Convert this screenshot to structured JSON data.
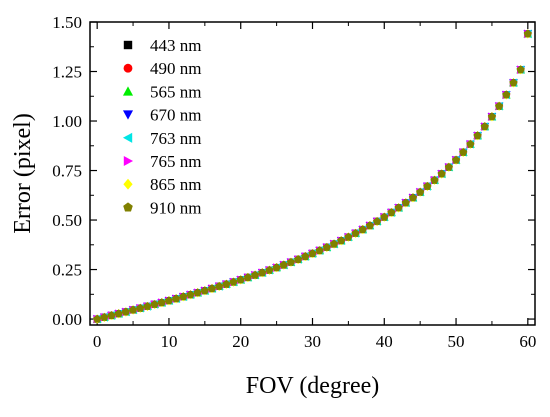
{
  "chart_data": {
    "type": "scatter",
    "title": "",
    "xlabel": "FOV (degree)",
    "ylabel": "Error (pixel)",
    "xlim": [
      -1,
      61
    ],
    "ylim": [
      -0.03,
      1.5
    ],
    "xticks": [
      0,
      10,
      20,
      30,
      40,
      50,
      60
    ],
    "yticks": [
      0.0,
      0.25,
      0.5,
      0.75,
      1.0,
      1.25,
      1.5
    ],
    "xtick_labels": [
      "0",
      "10",
      "20",
      "30",
      "40",
      "50",
      "60"
    ],
    "ytick_labels": [
      "0.00",
      "0.25",
      "0.50",
      "0.75",
      "1.00",
      "1.25",
      "1.50"
    ],
    "grid": false,
    "legend_position": "top-left",
    "x": [
      0,
      1,
      2,
      3,
      4,
      5,
      6,
      7,
      8,
      9,
      10,
      11,
      12,
      13,
      14,
      15,
      16,
      17,
      18,
      19,
      20,
      21,
      22,
      23,
      24,
      25,
      26,
      27,
      28,
      29,
      30,
      31,
      32,
      33,
      34,
      35,
      36,
      37,
      38,
      39,
      40,
      41,
      42,
      43,
      44,
      45,
      46,
      47,
      48,
      49,
      50,
      51,
      52,
      53,
      54,
      55,
      56,
      57,
      58,
      59,
      60
    ],
    "series": [
      {
        "name": "443 nm",
        "marker": "square",
        "color": "#000000",
        "values": [
          0.0,
          0.009,
          0.018,
          0.027,
          0.036,
          0.046,
          0.055,
          0.064,
          0.074,
          0.083,
          0.093,
          0.103,
          0.113,
          0.123,
          0.133,
          0.143,
          0.154,
          0.165,
          0.176,
          0.187,
          0.198,
          0.21,
          0.222,
          0.234,
          0.247,
          0.26,
          0.273,
          0.287,
          0.301,
          0.316,
          0.331,
          0.346,
          0.362,
          0.379,
          0.396,
          0.414,
          0.433,
          0.452,
          0.472,
          0.493,
          0.515,
          0.538,
          0.562,
          0.587,
          0.613,
          0.641,
          0.67,
          0.701,
          0.733,
          0.767,
          0.803,
          0.842,
          0.883,
          0.926,
          0.972,
          1.022,
          1.075,
          1.132,
          1.193,
          1.259,
          1.44
        ]
      },
      {
        "name": "490 nm",
        "marker": "circle",
        "color": "#ff0000",
        "values": [
          0.0,
          0.009,
          0.018,
          0.027,
          0.036,
          0.046,
          0.055,
          0.064,
          0.074,
          0.083,
          0.093,
          0.103,
          0.113,
          0.123,
          0.133,
          0.143,
          0.154,
          0.165,
          0.176,
          0.187,
          0.198,
          0.21,
          0.222,
          0.234,
          0.247,
          0.26,
          0.273,
          0.287,
          0.301,
          0.316,
          0.331,
          0.346,
          0.362,
          0.379,
          0.396,
          0.414,
          0.433,
          0.452,
          0.472,
          0.493,
          0.515,
          0.538,
          0.562,
          0.587,
          0.613,
          0.641,
          0.67,
          0.701,
          0.733,
          0.767,
          0.803,
          0.842,
          0.883,
          0.926,
          0.972,
          1.022,
          1.075,
          1.132,
          1.193,
          1.259,
          1.44
        ]
      },
      {
        "name": "565 nm",
        "marker": "triangle-up",
        "color": "#00ee00",
        "values": [
          0.0,
          0.009,
          0.018,
          0.027,
          0.036,
          0.046,
          0.055,
          0.064,
          0.074,
          0.083,
          0.093,
          0.103,
          0.113,
          0.123,
          0.133,
          0.143,
          0.154,
          0.165,
          0.176,
          0.187,
          0.198,
          0.21,
          0.222,
          0.234,
          0.247,
          0.26,
          0.273,
          0.287,
          0.301,
          0.316,
          0.331,
          0.346,
          0.362,
          0.379,
          0.396,
          0.414,
          0.433,
          0.452,
          0.472,
          0.493,
          0.515,
          0.538,
          0.562,
          0.587,
          0.613,
          0.641,
          0.67,
          0.701,
          0.733,
          0.767,
          0.803,
          0.842,
          0.883,
          0.926,
          0.972,
          1.022,
          1.075,
          1.132,
          1.193,
          1.259,
          1.44
        ]
      },
      {
        "name": "670 nm",
        "marker": "triangle-down",
        "color": "#0000ff",
        "values": [
          0.0,
          0.009,
          0.018,
          0.027,
          0.036,
          0.046,
          0.055,
          0.064,
          0.074,
          0.083,
          0.093,
          0.103,
          0.113,
          0.123,
          0.133,
          0.143,
          0.154,
          0.165,
          0.176,
          0.187,
          0.198,
          0.21,
          0.222,
          0.234,
          0.247,
          0.26,
          0.273,
          0.287,
          0.301,
          0.316,
          0.331,
          0.346,
          0.362,
          0.379,
          0.396,
          0.414,
          0.433,
          0.452,
          0.472,
          0.493,
          0.515,
          0.538,
          0.562,
          0.587,
          0.613,
          0.641,
          0.67,
          0.701,
          0.733,
          0.767,
          0.803,
          0.842,
          0.883,
          0.926,
          0.972,
          1.022,
          1.075,
          1.132,
          1.193,
          1.259,
          1.44
        ]
      },
      {
        "name": "763 nm",
        "marker": "triangle-left",
        "color": "#00e5e5",
        "values": [
          0.0,
          0.009,
          0.018,
          0.027,
          0.036,
          0.046,
          0.055,
          0.064,
          0.074,
          0.083,
          0.093,
          0.103,
          0.113,
          0.123,
          0.133,
          0.143,
          0.154,
          0.165,
          0.176,
          0.187,
          0.198,
          0.21,
          0.222,
          0.234,
          0.247,
          0.26,
          0.273,
          0.287,
          0.301,
          0.316,
          0.331,
          0.346,
          0.362,
          0.379,
          0.396,
          0.414,
          0.433,
          0.452,
          0.472,
          0.493,
          0.515,
          0.538,
          0.562,
          0.587,
          0.613,
          0.641,
          0.67,
          0.701,
          0.733,
          0.767,
          0.803,
          0.842,
          0.883,
          0.926,
          0.972,
          1.022,
          1.075,
          1.132,
          1.193,
          1.259,
          1.44
        ]
      },
      {
        "name": "765 nm",
        "marker": "triangle-right",
        "color": "#ff00ff",
        "values": [
          0.0,
          0.009,
          0.018,
          0.027,
          0.036,
          0.046,
          0.055,
          0.064,
          0.074,
          0.083,
          0.093,
          0.103,
          0.113,
          0.123,
          0.133,
          0.143,
          0.154,
          0.165,
          0.176,
          0.187,
          0.198,
          0.21,
          0.222,
          0.234,
          0.247,
          0.26,
          0.273,
          0.287,
          0.301,
          0.316,
          0.331,
          0.346,
          0.362,
          0.379,
          0.396,
          0.414,
          0.433,
          0.452,
          0.472,
          0.493,
          0.515,
          0.538,
          0.562,
          0.587,
          0.613,
          0.641,
          0.67,
          0.701,
          0.733,
          0.767,
          0.803,
          0.842,
          0.883,
          0.926,
          0.972,
          1.022,
          1.075,
          1.132,
          1.193,
          1.259,
          1.44
        ]
      },
      {
        "name": "865 nm",
        "marker": "diamond",
        "color": "#ffff00",
        "values": [
          0.0,
          0.009,
          0.018,
          0.027,
          0.036,
          0.046,
          0.055,
          0.064,
          0.074,
          0.083,
          0.093,
          0.103,
          0.113,
          0.123,
          0.133,
          0.143,
          0.154,
          0.165,
          0.176,
          0.187,
          0.198,
          0.21,
          0.222,
          0.234,
          0.247,
          0.26,
          0.273,
          0.287,
          0.301,
          0.316,
          0.331,
          0.346,
          0.362,
          0.379,
          0.396,
          0.414,
          0.433,
          0.452,
          0.472,
          0.493,
          0.515,
          0.538,
          0.562,
          0.587,
          0.613,
          0.641,
          0.67,
          0.701,
          0.733,
          0.767,
          0.803,
          0.842,
          0.883,
          0.926,
          0.972,
          1.022,
          1.075,
          1.132,
          1.193,
          1.259,
          1.44
        ]
      },
      {
        "name": "910 nm",
        "marker": "pentagon",
        "color": "#808000",
        "values": [
          0.0,
          0.009,
          0.018,
          0.027,
          0.036,
          0.046,
          0.055,
          0.064,
          0.074,
          0.083,
          0.093,
          0.103,
          0.113,
          0.123,
          0.133,
          0.143,
          0.154,
          0.165,
          0.176,
          0.187,
          0.198,
          0.21,
          0.222,
          0.234,
          0.247,
          0.26,
          0.273,
          0.287,
          0.301,
          0.316,
          0.331,
          0.346,
          0.362,
          0.379,
          0.396,
          0.414,
          0.433,
          0.452,
          0.472,
          0.493,
          0.515,
          0.538,
          0.562,
          0.587,
          0.613,
          0.641,
          0.67,
          0.701,
          0.733,
          0.767,
          0.803,
          0.842,
          0.883,
          0.926,
          0.972,
          1.022,
          1.075,
          1.132,
          1.193,
          1.259,
          1.44
        ]
      }
    ]
  }
}
